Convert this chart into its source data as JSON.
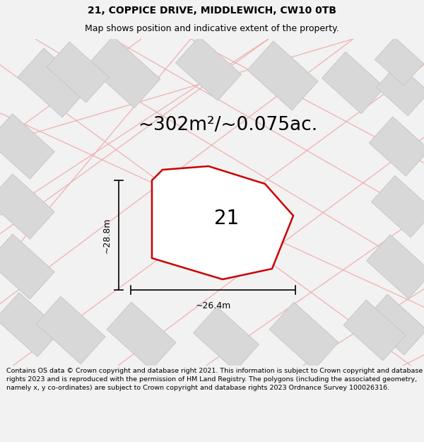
{
  "title": "21, COPPICE DRIVE, MIDDLEWICH, CW10 0TB",
  "subtitle": "Map shows position and indicative extent of the property.",
  "area_label": "~302m²/~0.075ac.",
  "plot_number": "21",
  "dim_width": "~26.4m",
  "dim_height": "~28.8m",
  "footer": "Contains OS data © Crown copyright and database right 2021. This information is subject to Crown copyright and database rights 2023 and is reproduced with the permission of HM Land Registry. The polygons (including the associated geometry, namely x, y co-ordinates) are subject to Crown copyright and database rights 2023 Ordnance Survey 100026316.",
  "bg_color": "#f2f2f2",
  "map_bg": "#ffffff",
  "plot_fill": "#ffffff",
  "plot_edge": "#cc0000",
  "neighbor_fill": "#d8d8d8",
  "neighbor_edge": "#c8c8c8",
  "road_color": "#f0a8a8",
  "title_fontsize": 10,
  "subtitle_fontsize": 9,
  "area_fontsize": 19,
  "plot_num_fontsize": 20,
  "dim_fontsize": 9,
  "footer_fontsize": 6.8
}
